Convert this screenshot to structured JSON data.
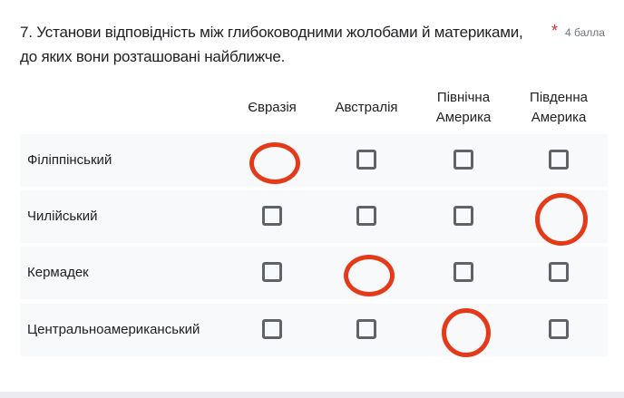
{
  "question": {
    "title": "7. Установи відповідність між глибоководними жолобами й материками, до яких вони розташовані найближче.",
    "required_marker": "*",
    "points": "4 балла"
  },
  "columns": [
    "Євразія",
    "Австралія",
    "Північна Америка",
    "Південна Америка"
  ],
  "rows": [
    {
      "label": "Філіппінський",
      "circled_column": 0
    },
    {
      "label": "Чилійський",
      "circled_column": 3
    },
    {
      "label": "Кермадек",
      "circled_column": 1
    },
    {
      "label": "Центральноамериканський",
      "circled_column": 2
    }
  ],
  "colors": {
    "annotation": "#e53a1a",
    "row_bg": "#f8f9fa",
    "checkbox": "#5f6368",
    "required": "#d93025"
  }
}
